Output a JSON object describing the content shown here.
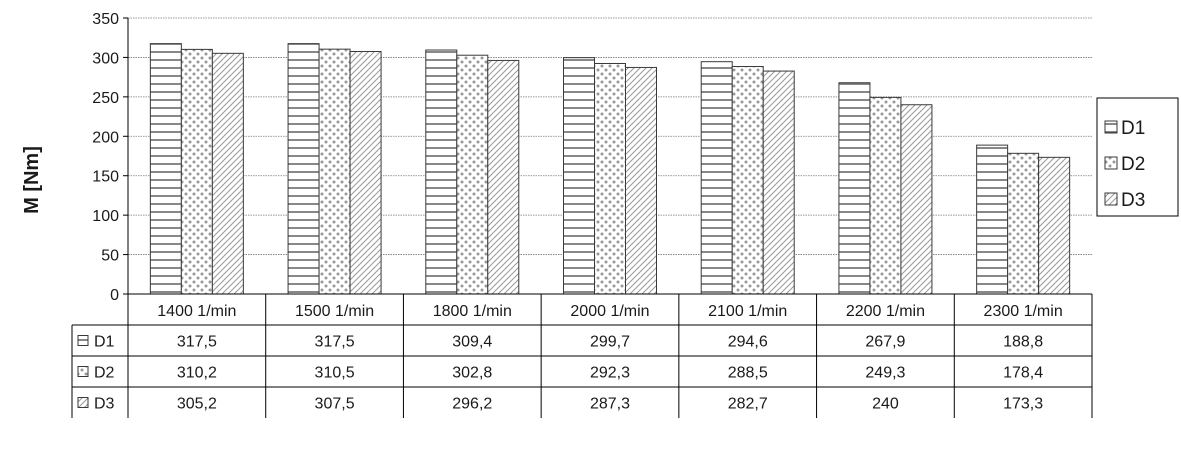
{
  "chart_data": {
    "type": "bar",
    "ylabel": "M [Nm]",
    "ylim": [
      0,
      350
    ],
    "yticks": [
      0,
      50,
      100,
      150,
      200,
      250,
      300,
      350
    ],
    "yticks_labels": [
      "0",
      "50",
      "100",
      "150",
      "200",
      "250",
      "300",
      "350"
    ],
    "grid": "horizontal",
    "legend_position": "right",
    "categories": [
      "1400 1/min",
      "1500 1/min",
      "1800 1/min",
      "2000 1/min",
      "2100 1/min",
      "2200 1/min",
      "2300 1/min"
    ],
    "series": [
      {
        "name": "D1",
        "pattern": "horizontal-stripes",
        "values": [
          317.5,
          317.5,
          309.4,
          299.7,
          294.6,
          267.9,
          188.8
        ],
        "labels": [
          "317,5",
          "317,5",
          "309,4",
          "299,7",
          "294,6",
          "267,9",
          "188,8"
        ]
      },
      {
        "name": "D2",
        "pattern": "dots",
        "values": [
          310.2,
          310.5,
          302.8,
          292.3,
          288.5,
          249.3,
          178.4
        ],
        "labels": [
          "310,2",
          "310,5",
          "302,8",
          "292,3",
          "288,5",
          "249,3",
          "178,4"
        ]
      },
      {
        "name": "D3",
        "pattern": "diagonal-hatch",
        "values": [
          305.2,
          307.5,
          296.2,
          287.3,
          282.7,
          240,
          173.3
        ],
        "labels": [
          "305,2",
          "307,5",
          "296,2",
          "287,3",
          "282,7",
          "240",
          "173,3"
        ]
      }
    ],
    "data_table": true
  }
}
